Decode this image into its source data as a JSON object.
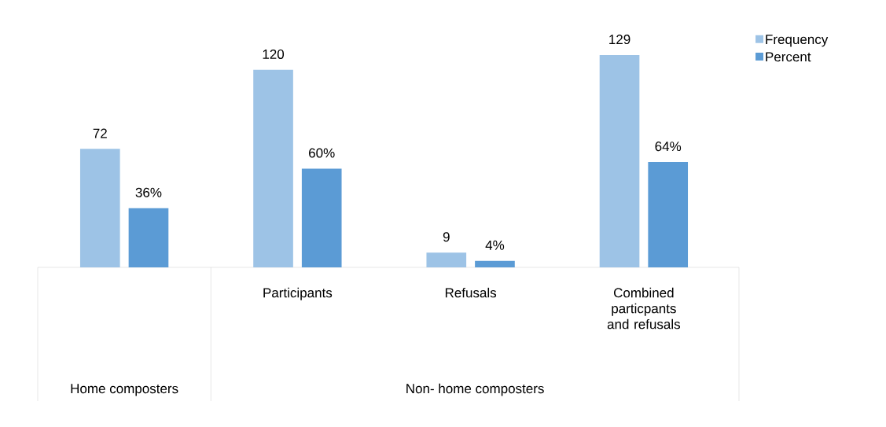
{
  "chart_data": {
    "type": "bar",
    "categories": [
      null,
      "Participants",
      "Refusals",
      "Combined particpants and refusals"
    ],
    "series": [
      {
        "name": "Frequency",
        "color": "#9dc3e6",
        "values": [
          72,
          120,
          9,
          129
        ],
        "value_labels": [
          "72",
          "120",
          "9",
          "129"
        ]
      },
      {
        "name": "Percent",
        "color": "#5b9bd5",
        "values": [
          36,
          60,
          4,
          64
        ],
        "value_labels": [
          "36%",
          "60%",
          "4%",
          "64%"
        ]
      }
    ],
    "annotations": [
      "Home composters",
      "Non- home composters"
    ],
    "legend": "top right"
  }
}
